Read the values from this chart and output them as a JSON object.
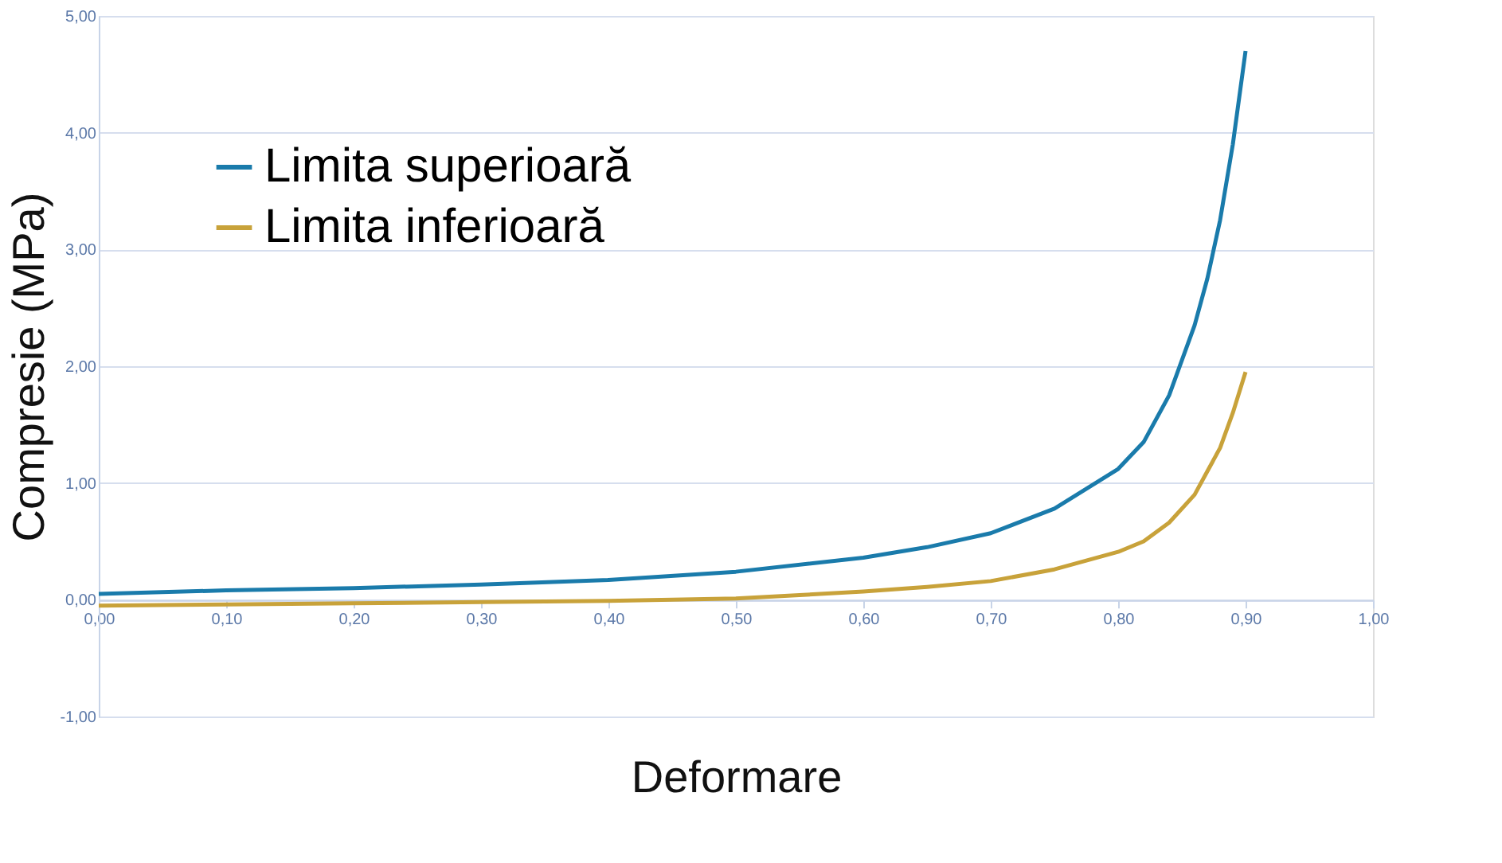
{
  "chart_data": {
    "type": "line",
    "xlabel": "Deformare",
    "ylabel": "Compresie (MPa)",
    "xlim": [
      0,
      1
    ],
    "ylim": [
      -1,
      5
    ],
    "xticks": [
      {
        "value": 0,
        "label": "0,00"
      },
      {
        "value": 0.1,
        "label": "0,10"
      },
      {
        "value": 0.2,
        "label": "0,20"
      },
      {
        "value": 0.3,
        "label": "0,30"
      },
      {
        "value": 0.4,
        "label": "0,40"
      },
      {
        "value": 0.5,
        "label": "0,50"
      },
      {
        "value": 0.6,
        "label": "0,60"
      },
      {
        "value": 0.7,
        "label": "0,70"
      },
      {
        "value": 0.8,
        "label": "0,80"
      },
      {
        "value": 0.9,
        "label": "0,90"
      },
      {
        "value": 1,
        "label": "1,00"
      }
    ],
    "yticks": [
      {
        "value": -1,
        "label": "-1,00"
      },
      {
        "value": 0,
        "label": "0,00"
      },
      {
        "value": 1,
        "label": "1,00"
      },
      {
        "value": 2,
        "label": "2,00"
      },
      {
        "value": 3,
        "label": "3,00"
      },
      {
        "value": 4,
        "label": "4,00"
      },
      {
        "value": 5,
        "label": "5,00"
      }
    ],
    "grid": "y",
    "legend": "top left",
    "marker": "none",
    "line_style": "solid",
    "series": [
      {
        "name": "Limita superioară",
        "color": "#1a7bab",
        "x": [
          0,
          0.1,
          0.2,
          0.3,
          0.4,
          0.5,
          0.6,
          0.65,
          0.7,
          0.75,
          0.8,
          0.82,
          0.84,
          0.86,
          0.87,
          0.88,
          0.89,
          0.9
        ],
        "values": [
          0.05,
          0.08,
          0.1,
          0.13,
          0.17,
          0.24,
          0.36,
          0.45,
          0.57,
          0.78,
          1.12,
          1.35,
          1.75,
          2.35,
          2.75,
          3.25,
          3.9,
          4.7
        ]
      },
      {
        "name": "Limita inferioară",
        "color": "#c8a23a",
        "x": [
          0,
          0.1,
          0.2,
          0.3,
          0.4,
          0.5,
          0.6,
          0.65,
          0.7,
          0.75,
          0.8,
          0.82,
          0.84,
          0.86,
          0.87,
          0.88,
          0.89,
          0.9
        ],
        "values": [
          -0.05,
          -0.04,
          -0.03,
          -0.02,
          -0.01,
          0.01,
          0.07,
          0.11,
          0.16,
          0.26,
          0.41,
          0.5,
          0.66,
          0.9,
          1.1,
          1.3,
          1.6,
          1.95
        ]
      }
    ]
  }
}
